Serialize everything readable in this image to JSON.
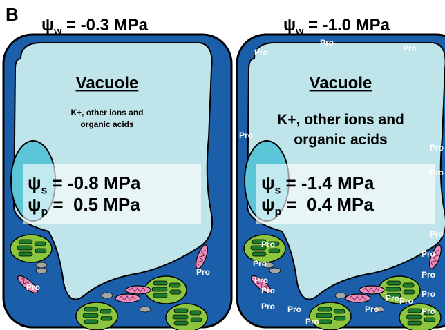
{
  "panel_label": "B",
  "cells": [
    {
      "water_potential": {
        "symbol": "ψ",
        "subscript": "w",
        "value": " = -0.3 MPa"
      },
      "vacuole_label": "Vacuole",
      "solutes": [
        "K+, other ions and",
        "organic acids"
      ],
      "solute_potential": {
        "symbol": "ψ",
        "subscript": "s",
        "value": " = -0.8 MPa"
      },
      "pressure_potential": {
        "symbol": "ψ",
        "subscript": "p",
        "value": " =  0.5 MPa"
      },
      "pro_labels": [
        "Pro",
        "Pro"
      ]
    },
    {
      "water_potential": {
        "symbol": "ψ",
        "subscript": "w",
        "value": " = -1.0 MPa"
      },
      "vacuole_label": "Vacuole",
      "solutes": [
        "K+, other ions and",
        "organic acids"
      ],
      "solute_potential": {
        "symbol": "ψ",
        "subscript": "s",
        "value": " = -1.4 MPa"
      },
      "pressure_potential": {
        "symbol": "ψ",
        "subscript": "p",
        "value": " =  0.4 MPa"
      },
      "pro_labels": [
        "Pro",
        "Pro",
        "Pro",
        "Pro",
        "Pro",
        "Pro",
        "Pro",
        "Pro",
        "Pro",
        "Pro",
        "Pro",
        "Pro",
        "Pro",
        "Pro",
        "Pro",
        "Pro",
        "Pro",
        "Pro",
        "Pro",
        "Pro",
        "Pro"
      ]
    }
  ]
}
